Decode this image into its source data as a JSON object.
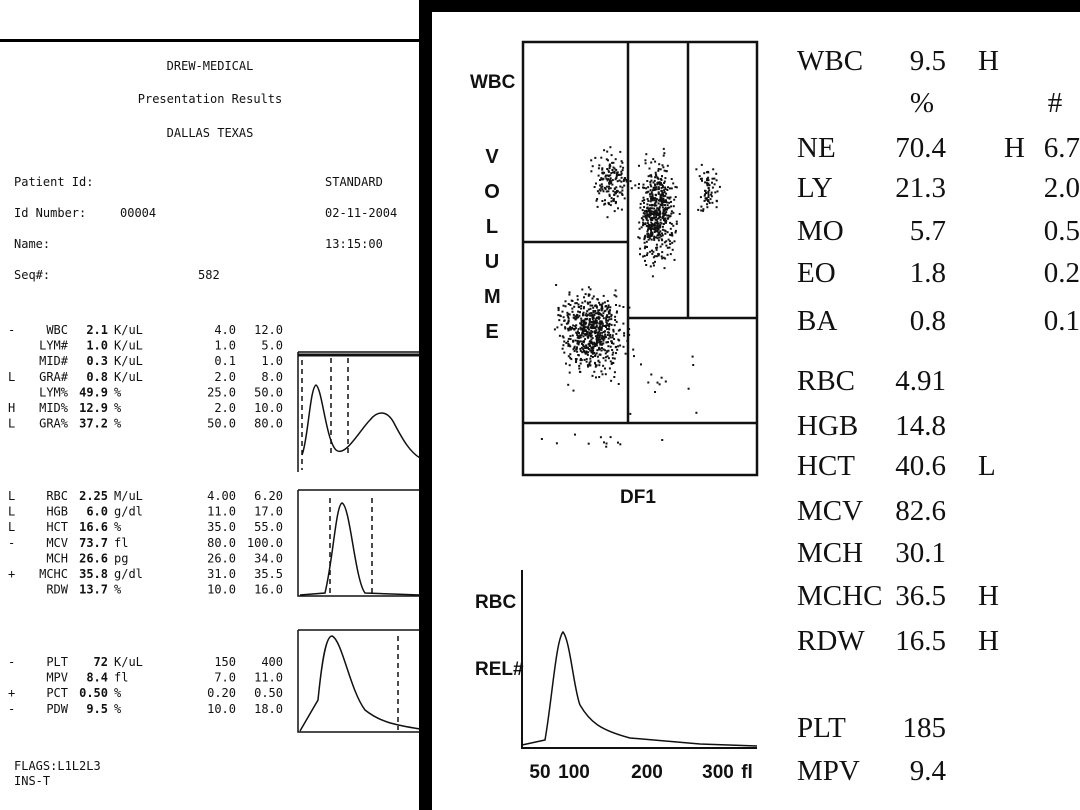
{
  "left_report": {
    "header": [
      "DREW-MEDICAL",
      "Presentation Results",
      "DALLAS  TEXAS"
    ],
    "patient": [
      {
        "label": "Patient Id:",
        "info": "STANDARD"
      },
      {
        "label": "Id Number:",
        "value": "00004",
        "info": "02-11-2004"
      },
      {
        "label": "Name:",
        "info": "13:15:00"
      },
      {
        "label": "Seq#:",
        "value": "582"
      }
    ],
    "groups": [
      [
        {
          "flag": "-",
          "name": "WBC",
          "value": "2.1",
          "unit": "K/uL",
          "low": "4.0",
          "high": "12.0"
        },
        {
          "name": "LYM#",
          "value": "1.0",
          "unit": "K/uL",
          "low": "1.0",
          "high": "5.0"
        },
        {
          "name": "MID#",
          "value": "0.3",
          "unit": "K/uL",
          "low": "0.1",
          "high": "1.0"
        },
        {
          "flag": "L",
          "name": "GRA#",
          "value": "0.8",
          "unit": "K/uL",
          "low": "2.0",
          "high": "8.0"
        },
        {
          "name": "LYM%",
          "value": "49.9",
          "unit": "%",
          "low": "25.0",
          "high": "50.0"
        },
        {
          "flag": "H",
          "name": "MID%",
          "value": "12.9",
          "unit": "%",
          "low": "2.0",
          "high": "10.0"
        },
        {
          "flag": "L",
          "name": "GRA%",
          "value": "37.2",
          "unit": "%",
          "low": "50.0",
          "high": "80.0"
        }
      ],
      [
        {
          "flag": "L",
          "name": "RBC",
          "value": "2.25",
          "unit": "M/uL",
          "low": "4.00",
          "high": "6.20"
        },
        {
          "flag": "L",
          "name": "HGB",
          "value": "6.0",
          "unit": "g/dl",
          "low": "11.0",
          "high": "17.0"
        },
        {
          "flag": "L",
          "name": "HCT",
          "value": "16.6",
          "unit": "%",
          "low": "35.0",
          "high": "55.0"
        },
        {
          "flag": "-",
          "name": "MCV",
          "value": "73.7",
          "unit": "fl",
          "low": "80.0",
          "high": "100.0"
        },
        {
          "name": "MCH",
          "value": "26.6",
          "unit": "pg",
          "low": "26.0",
          "high": "34.0"
        },
        {
          "flag": "+",
          "name": "MCHC",
          "value": "35.8",
          "unit": "g/dl",
          "low": "31.0",
          "high": "35.5"
        },
        {
          "name": "RDW",
          "value": "13.7",
          "unit": "%",
          "low": "10.0",
          "high": "16.0"
        }
      ],
      [
        {
          "flag": "-",
          "name": "PLT",
          "value": "72",
          "unit": "K/uL",
          "low": "150",
          "high": "400"
        },
        {
          "name": "MPV",
          "value": "8.4",
          "unit": "fl",
          "low": "7.0",
          "high": "11.0"
        },
        {
          "flag": "+",
          "name": "PCT",
          "value": "0.50",
          "unit": "%",
          "low": "0.20",
          "high": "0.50"
        },
        {
          "flag": "-",
          "name": "PDW",
          "value": "9.5",
          "unit": "%",
          "low": "10.0",
          "high": "18.0"
        }
      ]
    ],
    "flags": [
      "FLAGS:L1L2L3",
      "INS-T"
    ]
  },
  "right_report": {
    "scatter": {
      "y_label_top": "WBC",
      "y_label": "VOLUME",
      "x_label": "DF1"
    },
    "histogram": {
      "y_label_top": "RBC",
      "y_label": "REL#",
      "x_labels": [
        "50",
        "100",
        "200",
        "300",
        "fl"
      ]
    },
    "wbc": {
      "name": "WBC",
      "value": "9.5",
      "flag": "H"
    },
    "columns": [
      "%",
      "#"
    ],
    "differential": [
      {
        "name": "NE",
        "percent": "70.4",
        "flag": "H",
        "count": "6.7"
      },
      {
        "name": "LY",
        "percent": "21.3",
        "count": "2.0"
      },
      {
        "name": "MO",
        "percent": "5.7",
        "count": "0.5"
      },
      {
        "name": "EO",
        "percent": "1.8",
        "count": "0.2"
      },
      {
        "name": "BA",
        "percent": "0.8",
        "count": "0.1"
      }
    ],
    "red_cells": [
      {
        "name": "RBC",
        "value": "4.91"
      },
      {
        "name": "HGB",
        "value": "14.8"
      },
      {
        "name": "HCT",
        "value": "40.6",
        "flag": "L"
      },
      {
        "name": "MCV",
        "value": "82.6"
      },
      {
        "name": "MCH",
        "value": "30.1"
      },
      {
        "name": "MCHC",
        "value": "36.5",
        "flag": "H"
      },
      {
        "name": "RDW",
        "value": "16.5",
        "flag": "H"
      }
    ],
    "platelets": [
      {
        "name": "PLT",
        "value": "185"
      },
      {
        "name": "MPV",
        "value": "9.4"
      }
    ]
  }
}
